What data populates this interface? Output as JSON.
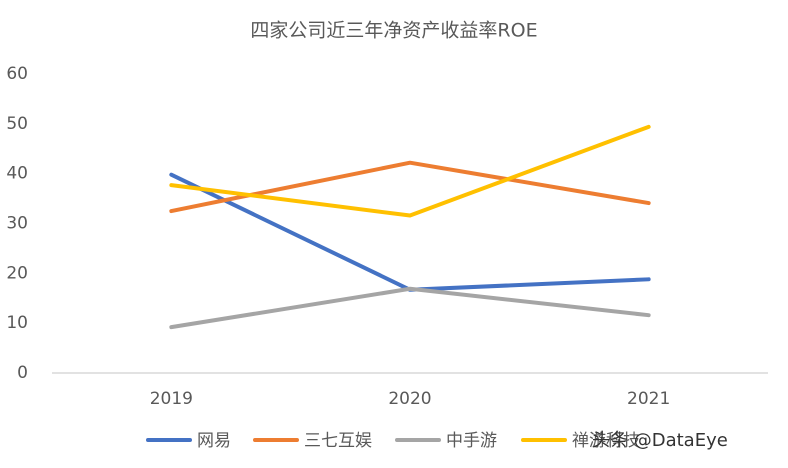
{
  "chart_data": {
    "type": "line",
    "title": "四家公司近三年净资产收益率ROE",
    "categories": [
      "2019",
      "2020",
      "2021"
    ],
    "series": [
      {
        "name": "网易",
        "color": "#4472c4",
        "values": [
          39.8,
          16.7,
          18.8
        ]
      },
      {
        "name": "三七互娱",
        "color": "#ed7d31",
        "values": [
          32.5,
          42.2,
          34.1
        ]
      },
      {
        "name": "中手游",
        "color": "#a5a5a5",
        "values": [
          9.2,
          16.9,
          11.6
        ]
      },
      {
        "name": "禅游科技",
        "color": "#ffc000",
        "values": [
          37.7,
          31.6,
          49.4
        ]
      }
    ],
    "ylim": [
      0,
      60
    ],
    "yticks": [
      0,
      10,
      20,
      30,
      40,
      50,
      60
    ],
    "grid": false,
    "legend": "bottom",
    "watermark": "头条 @DataEye"
  }
}
